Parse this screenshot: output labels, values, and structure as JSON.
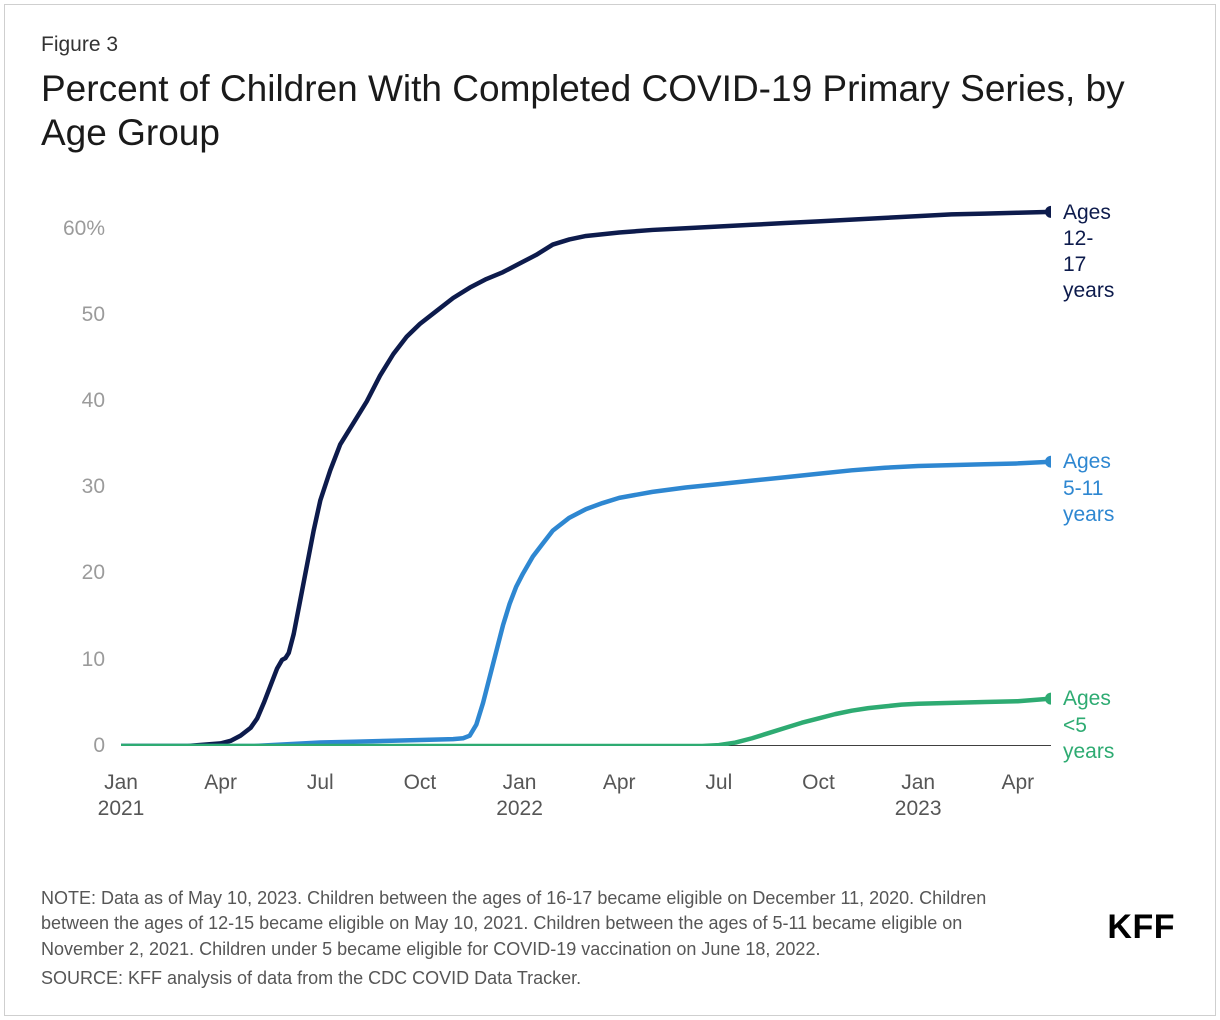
{
  "figure_label": "Figure 3",
  "title": "Percent of Children With Completed COVID-19 Primary Series, by Age Group",
  "note": "NOTE: Data as of May 10, 2023. Children between the ages of 16-17 became eligible on December 11, 2020. Children between the ages of 12-15 became eligible on May 10, 2021. Children between the ages of 5-11 became eligible on November 2, 2021. Children under 5 became eligible for COVID-19 vaccination on June 18, 2022.",
  "source": "SOURCE: KFF analysis of data from the CDC COVID Data Tracker.",
  "brand": "KFF",
  "chart": {
    "type": "line",
    "background_color": "#ffffff",
    "axis_color": "#000000",
    "tick_label_color": "#9b9b9b",
    "xtick_label_color": "#565656",
    "line_width": 4.5,
    "end_marker_radius": 6,
    "y": {
      "min": 0,
      "max": 65,
      "ticks": [
        0,
        10,
        20,
        30,
        40,
        50,
        60
      ],
      "tick_labels": [
        "0",
        "10",
        "20",
        "30",
        "40",
        "50",
        "60%"
      ]
    },
    "x": {
      "min_month_index": 0,
      "max_month_index": 28,
      "ticks": [
        {
          "i": 0,
          "label": "Jan\n2021"
        },
        {
          "i": 3,
          "label": "Apr"
        },
        {
          "i": 6,
          "label": "Jul"
        },
        {
          "i": 9,
          "label": "Oct"
        },
        {
          "i": 12,
          "label": "Jan\n2022"
        },
        {
          "i": 15,
          "label": "Apr"
        },
        {
          "i": 18,
          "label": "Jul"
        },
        {
          "i": 21,
          "label": "Oct"
        },
        {
          "i": 24,
          "label": "Jan\n2023"
        },
        {
          "i": 27,
          "label": "Apr"
        }
      ]
    },
    "series": [
      {
        "name": "Ages 12-17 years",
        "label": "Ages\n12-\n17\nyears",
        "color": "#0d1b4c",
        "points": [
          [
            0,
            0
          ],
          [
            1,
            0
          ],
          [
            2,
            0
          ],
          [
            3,
            0.3
          ],
          [
            3.3,
            0.6
          ],
          [
            3.6,
            1.2
          ],
          [
            3.9,
            2.1
          ],
          [
            4.1,
            3.2
          ],
          [
            4.3,
            5.0
          ],
          [
            4.5,
            7.0
          ],
          [
            4.7,
            9.0
          ],
          [
            4.85,
            10.0
          ],
          [
            4.95,
            10.2
          ],
          [
            5.05,
            10.8
          ],
          [
            5.2,
            13.0
          ],
          [
            5.4,
            17.0
          ],
          [
            5.6,
            21.0
          ],
          [
            5.8,
            25.0
          ],
          [
            6.0,
            28.5
          ],
          [
            6.3,
            32.0
          ],
          [
            6.6,
            35.0
          ],
          [
            7.0,
            37.5
          ],
          [
            7.4,
            40.0
          ],
          [
            7.8,
            43.0
          ],
          [
            8.2,
            45.5
          ],
          [
            8.6,
            47.5
          ],
          [
            9.0,
            49.0
          ],
          [
            9.5,
            50.5
          ],
          [
            10.0,
            52.0
          ],
          [
            10.5,
            53.2
          ],
          [
            11.0,
            54.2
          ],
          [
            11.5,
            55.0
          ],
          [
            12.0,
            56.0
          ],
          [
            12.5,
            57.0
          ],
          [
            13.0,
            58.2
          ],
          [
            13.5,
            58.8
          ],
          [
            14.0,
            59.2
          ],
          [
            15.0,
            59.6
          ],
          [
            16.0,
            59.9
          ],
          [
            17.0,
            60.1
          ],
          [
            18.0,
            60.3
          ],
          [
            19.0,
            60.5
          ],
          [
            20.0,
            60.7
          ],
          [
            21.0,
            60.9
          ],
          [
            22.0,
            61.1
          ],
          [
            23.0,
            61.3
          ],
          [
            24.0,
            61.5
          ],
          [
            25.0,
            61.7
          ],
          [
            26.0,
            61.8
          ],
          [
            27.0,
            61.9
          ],
          [
            28.0,
            62.0
          ]
        ]
      },
      {
        "name": "Ages 5-11 years",
        "label": "Ages\n5-11\nyears",
        "color": "#2e87d1",
        "points": [
          [
            0,
            0
          ],
          [
            2,
            0
          ],
          [
            4,
            0
          ],
          [
            5,
            0.2
          ],
          [
            6,
            0.4
          ],
          [
            7,
            0.5
          ],
          [
            8,
            0.6
          ],
          [
            9,
            0.7
          ],
          [
            10,
            0.8
          ],
          [
            10.3,
            0.9
          ],
          [
            10.5,
            1.2
          ],
          [
            10.7,
            2.5
          ],
          [
            10.9,
            5.0
          ],
          [
            11.1,
            8.0
          ],
          [
            11.3,
            11.0
          ],
          [
            11.5,
            14.0
          ],
          [
            11.7,
            16.5
          ],
          [
            11.9,
            18.5
          ],
          [
            12.1,
            20.0
          ],
          [
            12.4,
            22.0
          ],
          [
            12.7,
            23.5
          ],
          [
            13.0,
            25.0
          ],
          [
            13.5,
            26.5
          ],
          [
            14.0,
            27.5
          ],
          [
            14.5,
            28.2
          ],
          [
            15.0,
            28.8
          ],
          [
            16.0,
            29.5
          ],
          [
            17.0,
            30.0
          ],
          [
            18.0,
            30.4
          ],
          [
            19.0,
            30.8
          ],
          [
            20.0,
            31.2
          ],
          [
            21.0,
            31.6
          ],
          [
            22.0,
            32.0
          ],
          [
            23.0,
            32.3
          ],
          [
            24.0,
            32.5
          ],
          [
            25.0,
            32.6
          ],
          [
            26.0,
            32.7
          ],
          [
            27.0,
            32.8
          ],
          [
            28.0,
            33.0
          ]
        ]
      },
      {
        "name": "Ages <5 years",
        "label": "Ages\n<5\nyears",
        "color": "#2eab72",
        "points": [
          [
            0,
            0
          ],
          [
            6,
            0
          ],
          [
            12,
            0
          ],
          [
            16,
            0
          ],
          [
            17.5,
            0
          ],
          [
            18.0,
            0.1
          ],
          [
            18.5,
            0.4
          ],
          [
            19.0,
            0.9
          ],
          [
            19.5,
            1.5
          ],
          [
            20.0,
            2.1
          ],
          [
            20.5,
            2.7
          ],
          [
            21.0,
            3.2
          ],
          [
            21.5,
            3.7
          ],
          [
            22.0,
            4.1
          ],
          [
            22.5,
            4.4
          ],
          [
            23.0,
            4.6
          ],
          [
            23.5,
            4.8
          ],
          [
            24.0,
            4.9
          ],
          [
            25.0,
            5.0
          ],
          [
            26.0,
            5.1
          ],
          [
            27.0,
            5.2
          ],
          [
            28.0,
            5.5
          ]
        ]
      }
    ]
  }
}
